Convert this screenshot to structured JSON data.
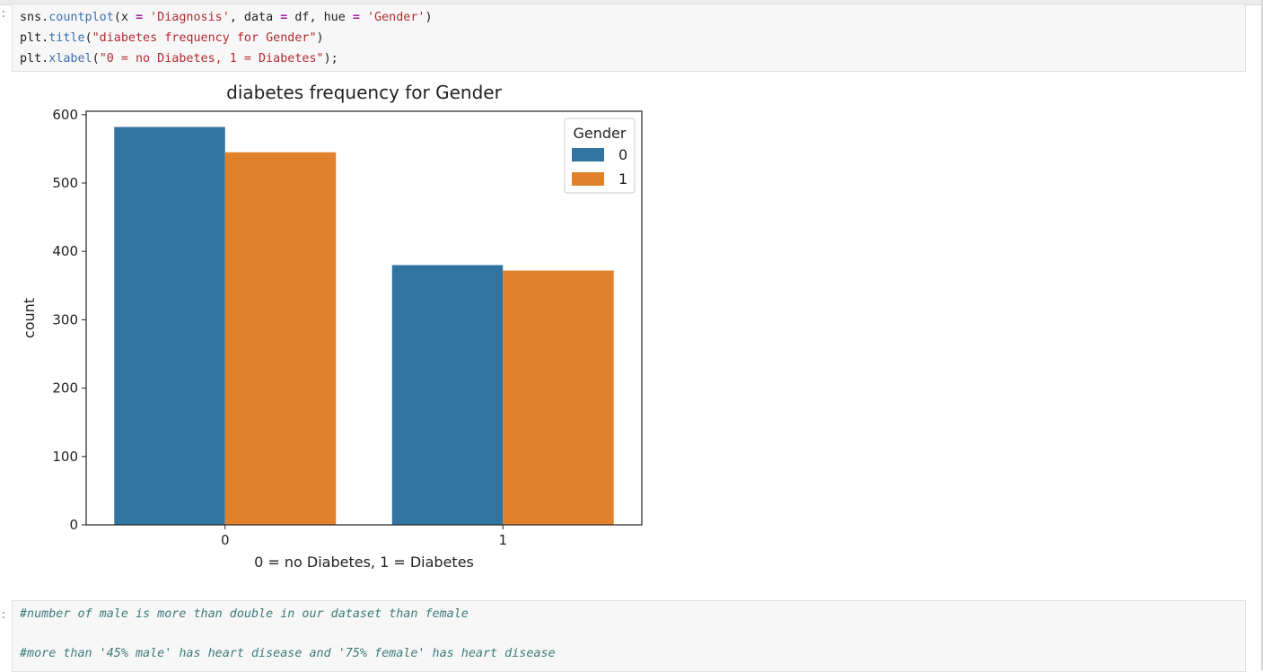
{
  "cell1": {
    "prompt": ":",
    "code": [
      {
        "parts": [
          {
            "t": "sns.",
            "c": ""
          },
          {
            "t": "countplot",
            "c": "fn"
          },
          {
            "t": "(x ",
            "c": ""
          },
          {
            "t": "=",
            "c": "op"
          },
          {
            "t": " ",
            "c": ""
          },
          {
            "t": "'Diagnosis'",
            "c": "str"
          },
          {
            "t": ", data ",
            "c": ""
          },
          {
            "t": "=",
            "c": "op"
          },
          {
            "t": " df, hue ",
            "c": ""
          },
          {
            "t": "=",
            "c": "op"
          },
          {
            "t": " ",
            "c": ""
          },
          {
            "t": "'Gender'",
            "c": "str"
          },
          {
            "t": ")",
            "c": ""
          }
        ]
      },
      {
        "parts": [
          {
            "t": "plt.",
            "c": ""
          },
          {
            "t": "title",
            "c": "fn"
          },
          {
            "t": "(",
            "c": ""
          },
          {
            "t": "\"diabetes frequency for Gender\"",
            "c": "str"
          },
          {
            "t": ")",
            "c": ""
          }
        ]
      },
      {
        "parts": [
          {
            "t": "plt.",
            "c": ""
          },
          {
            "t": "xlabel",
            "c": "fn"
          },
          {
            "t": "(",
            "c": ""
          },
          {
            "t": "\"0 = no Diabetes, 1 = Diabetes\"",
            "c": "str"
          },
          {
            "t": ");",
            "c": ""
          }
        ]
      }
    ]
  },
  "chart_data": {
    "type": "bar",
    "title": "diabetes frequency for Gender",
    "xlabel": "0 = no Diabetes, 1 = Diabetes",
    "ylabel": "count",
    "categories": [
      "0",
      "1"
    ],
    "series": [
      {
        "name": "0",
        "values": [
          582,
          380
        ],
        "color": "#3274a1"
      },
      {
        "name": "1",
        "values": [
          545,
          372
        ],
        "color": "#e1812c"
      }
    ],
    "ylim": [
      0,
      605
    ],
    "yticks": [
      "0",
      "100",
      "200",
      "300",
      "400",
      "500",
      "600"
    ],
    "legend_title": "Gender",
    "legend_position": "top-right",
    "grid": false
  },
  "cell2": {
    "prompt": ":",
    "lines": [
      "#number of male is more than double in our dataset than female",
      "",
      "#more than '45% male' has heart disease and '75% female' has heart disease"
    ]
  }
}
